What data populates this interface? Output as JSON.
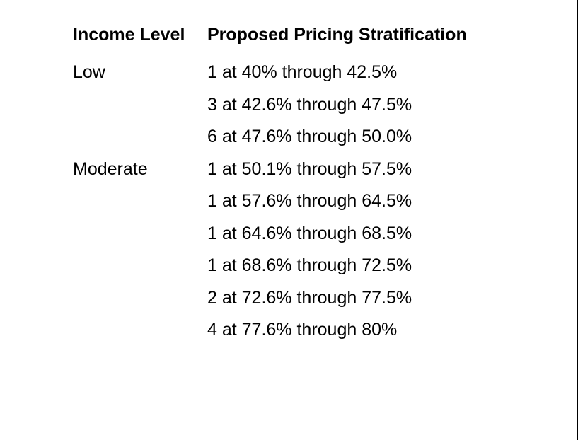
{
  "table": {
    "headers": {
      "income_level": "Income Level",
      "pricing": "Proposed Pricing Stratification"
    },
    "rows": [
      {
        "income": "Low",
        "pricing": "1 at 40% through 42.5%"
      },
      {
        "income": "",
        "pricing": "3 at 42.6% through 47.5%"
      },
      {
        "income": "",
        "pricing": "6 at 47.6% through 50.0%"
      },
      {
        "income": "Moderate",
        "pricing": "1 at 50.1% through 57.5%"
      },
      {
        "income": "",
        "pricing": "1 at 57.6% through 64.5%"
      },
      {
        "income": "",
        "pricing": "1 at 64.6% through 68.5%"
      },
      {
        "income": "",
        "pricing": "1 at 68.6% through 72.5%"
      },
      {
        "income": "",
        "pricing": "2 at 72.6% through 77.5%"
      },
      {
        "income": "",
        "pricing": "4 at 77.6% through 80%"
      }
    ]
  }
}
